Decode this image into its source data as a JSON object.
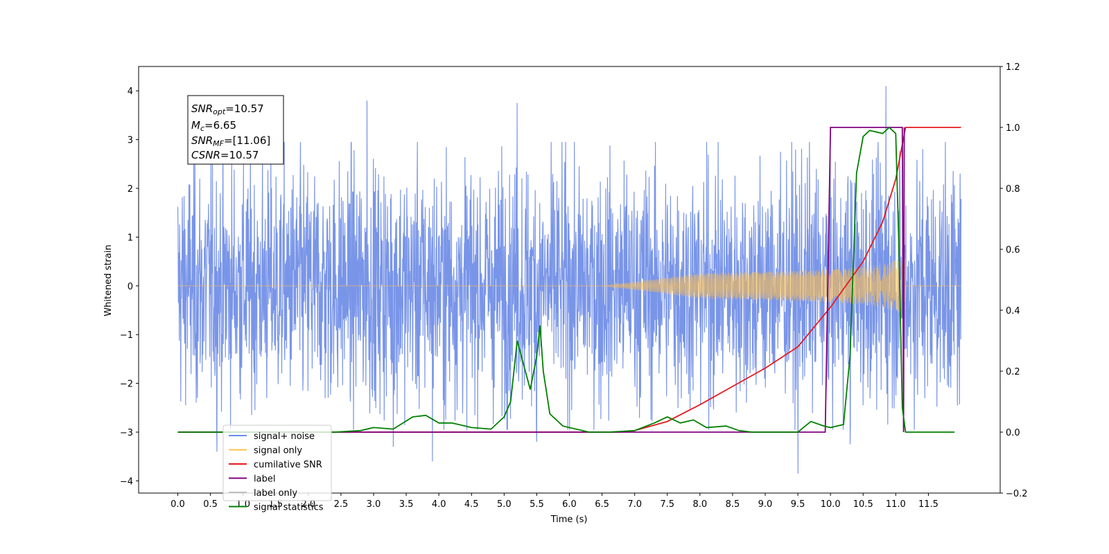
{
  "chart_data": {
    "type": "line",
    "xlabel": "Time (s)",
    "ylabel_left": "Whitened strain",
    "ylabel_right": "",
    "xlim": [
      -0.6,
      12.6
    ],
    "ylim_left": [
      -4.25,
      4.5
    ],
    "ylim_right": [
      -0.2,
      1.2
    ],
    "x_ticks": [
      "0.0",
      "0.5",
      "1.0",
      "1.5",
      "2.0",
      "2.5",
      "3.0",
      "3.5",
      "4.0",
      "4.5",
      "5.0",
      "5.5",
      "6.0",
      "6.5",
      "7.0",
      "7.5",
      "8.0",
      "8.5",
      "9.0",
      "9.5",
      "10.0",
      "10.5",
      "11.0",
      "11.5"
    ],
    "y_ticks_left": [
      "4",
      "3",
      "2",
      "1",
      "0",
      "−1",
      "−2",
      "−3",
      "−4"
    ],
    "y_ticks_right": [
      "1.2",
      "1.0",
      "0.8",
      "0.6",
      "0.4",
      "0.2",
      "0.0",
      "−0.2"
    ],
    "annotation": {
      "snr_opt_value": "=10.57",
      "mc_value": "=6.65",
      "snr_mf_value": "=[11.06]",
      "csnr_value": "=10.57"
    },
    "legend": {
      "placement": "lower-left",
      "entries": [
        {
          "label": "signal+ noise",
          "color": "#6a8ae6"
        },
        {
          "label": "signal only",
          "color": "#ffc04d"
        },
        {
          "label": "cumilative SNR",
          "color": "#e6191e"
        },
        {
          "label": "label",
          "color": "#800080"
        },
        {
          "label": "label only",
          "color": "#c0c0c0"
        },
        {
          "label": "signal statistics",
          "color": "#008000"
        }
      ]
    },
    "series": [
      {
        "name": "signal+ noise",
        "axis": "left",
        "color": "#6a8ae6",
        "x_range": [
          0.0,
          12.0
        ],
        "amplitude_typical": 1.6,
        "amplitude_peak": 4.1,
        "spikes": [
          {
            "x": 0.6,
            "y": -3.4
          },
          {
            "x": 2.9,
            "y": 3.8
          },
          {
            "x": 3.3,
            "y": -3.3
          },
          {
            "x": 3.9,
            "y": -3.6
          },
          {
            "x": 5.2,
            "y": 3.75
          },
          {
            "x": 5.5,
            "y": -3.2
          },
          {
            "x": 9.5,
            "y": -3.85
          },
          {
            "x": 10.3,
            "y": -3.25
          },
          {
            "x": 10.85,
            "y": 4.1
          }
        ]
      },
      {
        "name": "signal only",
        "axis": "left",
        "color": "#ffc04d",
        "chirp_start": 6.5,
        "merger": 11.15,
        "amplitude_at_merger": 0.75
      },
      {
        "name": "cumilative SNR",
        "axis": "right",
        "color": "#e6191e",
        "x": [
          0.0,
          6.8,
          7.0,
          7.5,
          8.0,
          8.5,
          9.0,
          9.5,
          10.0,
          10.5,
          10.8,
          11.0,
          11.15,
          12.0
        ],
        "y": [
          0.0,
          0.0,
          0.005,
          0.035,
          0.09,
          0.15,
          0.21,
          0.28,
          0.41,
          0.56,
          0.69,
          0.83,
          1.0,
          1.0
        ]
      },
      {
        "name": "label",
        "axis": "right",
        "color": "#800080",
        "x": [
          0.0,
          9.92,
          10.0,
          11.1,
          11.12,
          11.13
        ],
        "y": [
          0.0,
          0.0,
          1.0,
          1.0,
          0.0,
          1.0
        ]
      },
      {
        "name": "signal statistics",
        "axis": "right",
        "color": "#008000",
        "x": [
          0.0,
          2.4,
          2.8,
          3.0,
          3.3,
          3.6,
          3.8,
          4.0,
          4.2,
          4.5,
          4.8,
          5.0,
          5.1,
          5.2,
          5.3,
          5.4,
          5.5,
          5.55,
          5.6,
          5.7,
          5.9,
          6.3,
          6.6,
          7.0,
          7.3,
          7.5,
          7.7,
          7.9,
          8.1,
          8.4,
          8.6,
          8.8,
          9.5,
          9.7,
          9.9,
          10.0,
          10.2,
          10.3,
          10.35,
          10.4,
          10.5,
          10.6,
          10.8,
          10.9,
          11.0,
          11.05,
          11.1,
          11.15,
          11.2,
          11.9
        ],
        "y": [
          0.0,
          0.0,
          0.005,
          0.015,
          0.01,
          0.05,
          0.055,
          0.03,
          0.03,
          0.015,
          0.01,
          0.05,
          0.1,
          0.3,
          0.22,
          0.14,
          0.25,
          0.35,
          0.2,
          0.06,
          0.02,
          0.0,
          0.0,
          0.005,
          0.03,
          0.05,
          0.03,
          0.04,
          0.015,
          0.02,
          0.005,
          0.0,
          0.0,
          0.035,
          0.02,
          0.015,
          0.025,
          0.25,
          0.55,
          0.85,
          0.97,
          0.99,
          0.98,
          1.0,
          0.98,
          0.6,
          0.08,
          0.0,
          0.0,
          0.0
        ]
      }
    ]
  }
}
